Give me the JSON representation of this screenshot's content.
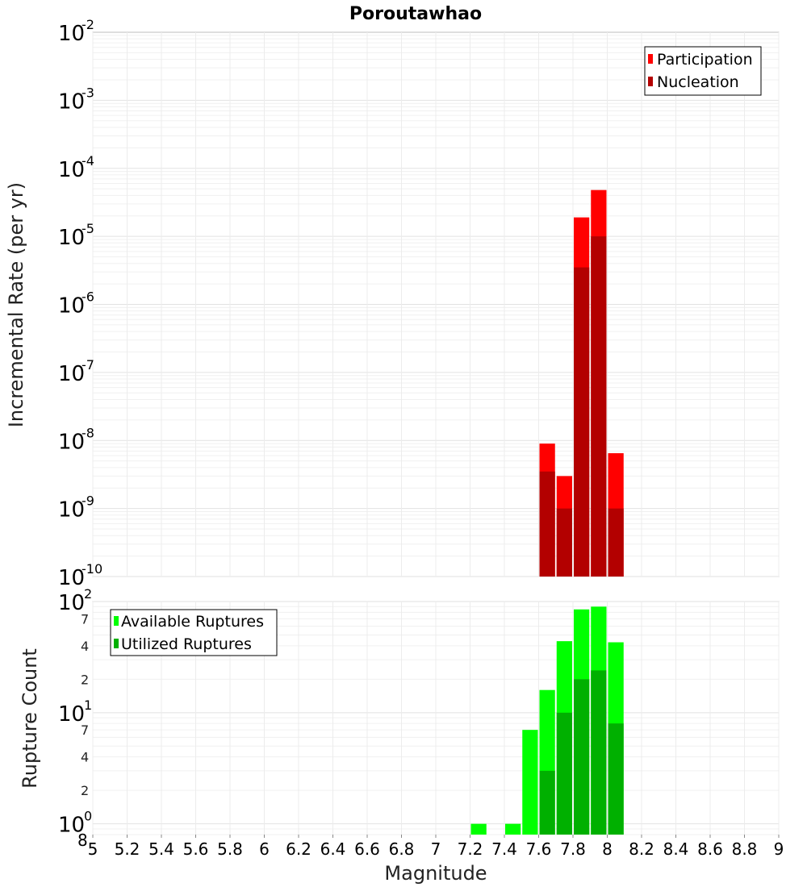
{
  "chart_data": [
    {
      "type": "bar",
      "title": "Poroutawhao",
      "ylabel": "Incremental Rate (per yr)",
      "yscale": "log",
      "ylim": [
        1e-10,
        0.01
      ],
      "y_ticks": [
        {
          "base": "10",
          "exp": "-10"
        },
        {
          "base": "10",
          "exp": "-9"
        },
        {
          "base": "10",
          "exp": "-8"
        },
        {
          "base": "10",
          "exp": "-7"
        },
        {
          "base": "10",
          "exp": "-6"
        },
        {
          "base": "10",
          "exp": "-5"
        },
        {
          "base": "10",
          "exp": "-4"
        },
        {
          "base": "10",
          "exp": "-3"
        },
        {
          "base": "10",
          "exp": "-2"
        }
      ],
      "xlim": [
        5,
        9
      ],
      "grid": true,
      "legend_position": "top-right",
      "bin_width": 0.1,
      "series": [
        {
          "name": "Participation",
          "color": "#ff0000",
          "points": [
            [
              7.65,
              9e-09
            ],
            [
              7.75,
              3e-09
            ],
            [
              7.85,
              1.9e-05
            ],
            [
              7.95,
              4.8e-05
            ],
            [
              8.05,
              6.5e-09
            ]
          ]
        },
        {
          "name": "Nucleation",
          "color": "#b30000",
          "points": [
            [
              7.65,
              3.5e-09
            ],
            [
              7.75,
              1e-09
            ],
            [
              7.85,
              3.5e-06
            ],
            [
              7.95,
              1e-05
            ],
            [
              8.05,
              1e-09
            ]
          ]
        }
      ]
    },
    {
      "type": "bar",
      "ylabel": "Rupture Count",
      "xlabel": "Magnitude",
      "yscale": "log",
      "ylim": [
        0.8,
        100
      ],
      "y_ticks": [
        {
          "base": "10",
          "exp": "0",
          "value": 1
        },
        {
          "base": "10",
          "exp": "1",
          "value": 10
        },
        {
          "base": "10",
          "exp": "2",
          "value": 100
        }
      ],
      "y_minor_labels": [
        {
          "label": "8",
          "value": 0.8
        },
        {
          "label": "2",
          "value": 2
        },
        {
          "label": "4",
          "value": 4
        },
        {
          "label": "7",
          "value": 7
        },
        {
          "label": "2",
          "value": 20
        },
        {
          "label": "4",
          "value": 40
        },
        {
          "label": "7",
          "value": 70
        }
      ],
      "x_ticks": [
        "5",
        "5.2",
        "5.4",
        "5.6",
        "5.8",
        "6",
        "6.2",
        "6.4",
        "6.6",
        "6.8",
        "7",
        "7.2",
        "7.4",
        "7.6",
        "7.8",
        "8",
        "8.2",
        "8.4",
        "8.6",
        "8.8",
        "9"
      ],
      "xlim": [
        5,
        9
      ],
      "grid": true,
      "legend_position": "top-left",
      "bin_width": 0.1,
      "series": [
        {
          "name": "Available Ruptures",
          "color": "#00ff00",
          "points": [
            [
              7.25,
              1
            ],
            [
              7.45,
              1
            ],
            [
              7.55,
              7
            ],
            [
              7.65,
              16
            ],
            [
              7.75,
              44
            ],
            [
              7.85,
              85
            ],
            [
              7.95,
              90
            ],
            [
              8.05,
              43
            ]
          ]
        },
        {
          "name": "Utilized Ruptures",
          "color": "#00b000",
          "points": [
            [
              7.65,
              3
            ],
            [
              7.75,
              10
            ],
            [
              7.85,
              20
            ],
            [
              7.95,
              24
            ],
            [
              8.05,
              8
            ]
          ]
        }
      ]
    }
  ]
}
